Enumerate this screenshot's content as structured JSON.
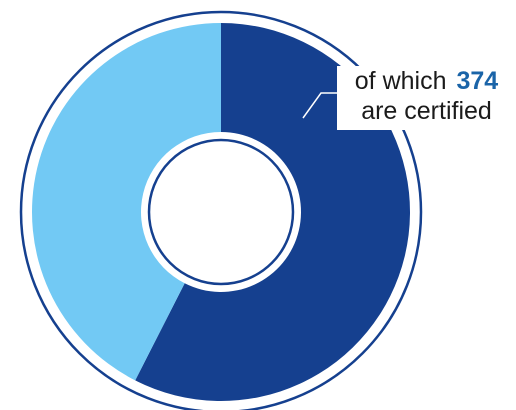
{
  "chart_data": {
    "type": "pie",
    "variant": "donut",
    "slices": [
      {
        "share": 0.575,
        "color": "#15408f"
      },
      {
        "share": 0.425,
        "color": "#72c9f4"
      }
    ],
    "annotation": {
      "prefix": "of which",
      "value": "374",
      "suffix": "are certified",
      "value_color": "#1a64a8"
    },
    "outline_color": "#15408f",
    "legend": "none"
  }
}
